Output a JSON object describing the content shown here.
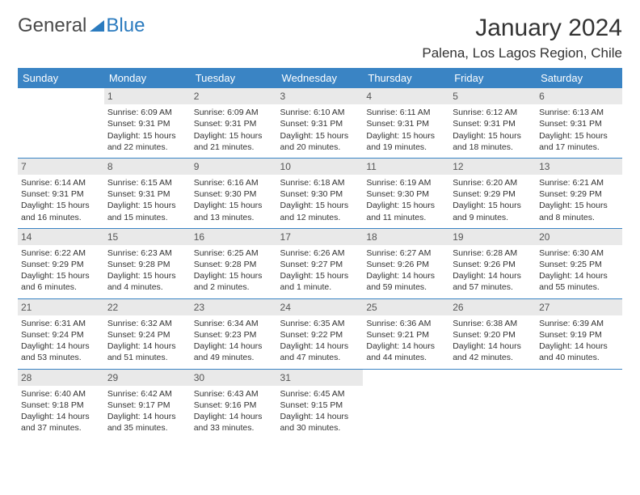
{
  "logo": {
    "part1": "General",
    "part2": "Blue"
  },
  "title": "January 2024",
  "location": "Palena, Los Lagos Region, Chile",
  "colors": {
    "header_bg": "#3a84c4",
    "header_text": "#ffffff",
    "daynum_bg": "#e9e9e9",
    "rule": "#3a84c4",
    "brand_blue": "#2b7bbf",
    "text": "#333333"
  },
  "weekdays": [
    "Sunday",
    "Monday",
    "Tuesday",
    "Wednesday",
    "Thursday",
    "Friday",
    "Saturday"
  ],
  "weeks": [
    [
      {
        "day": "",
        "sunrise": "",
        "sunset": "",
        "daylight": ""
      },
      {
        "day": "1",
        "sunrise": "Sunrise: 6:09 AM",
        "sunset": "Sunset: 9:31 PM",
        "daylight": "Daylight: 15 hours and 22 minutes."
      },
      {
        "day": "2",
        "sunrise": "Sunrise: 6:09 AM",
        "sunset": "Sunset: 9:31 PM",
        "daylight": "Daylight: 15 hours and 21 minutes."
      },
      {
        "day": "3",
        "sunrise": "Sunrise: 6:10 AM",
        "sunset": "Sunset: 9:31 PM",
        "daylight": "Daylight: 15 hours and 20 minutes."
      },
      {
        "day": "4",
        "sunrise": "Sunrise: 6:11 AM",
        "sunset": "Sunset: 9:31 PM",
        "daylight": "Daylight: 15 hours and 19 minutes."
      },
      {
        "day": "5",
        "sunrise": "Sunrise: 6:12 AM",
        "sunset": "Sunset: 9:31 PM",
        "daylight": "Daylight: 15 hours and 18 minutes."
      },
      {
        "day": "6",
        "sunrise": "Sunrise: 6:13 AM",
        "sunset": "Sunset: 9:31 PM",
        "daylight": "Daylight: 15 hours and 17 minutes."
      }
    ],
    [
      {
        "day": "7",
        "sunrise": "Sunrise: 6:14 AM",
        "sunset": "Sunset: 9:31 PM",
        "daylight": "Daylight: 15 hours and 16 minutes."
      },
      {
        "day": "8",
        "sunrise": "Sunrise: 6:15 AM",
        "sunset": "Sunset: 9:31 PM",
        "daylight": "Daylight: 15 hours and 15 minutes."
      },
      {
        "day": "9",
        "sunrise": "Sunrise: 6:16 AM",
        "sunset": "Sunset: 9:30 PM",
        "daylight": "Daylight: 15 hours and 13 minutes."
      },
      {
        "day": "10",
        "sunrise": "Sunrise: 6:18 AM",
        "sunset": "Sunset: 9:30 PM",
        "daylight": "Daylight: 15 hours and 12 minutes."
      },
      {
        "day": "11",
        "sunrise": "Sunrise: 6:19 AM",
        "sunset": "Sunset: 9:30 PM",
        "daylight": "Daylight: 15 hours and 11 minutes."
      },
      {
        "day": "12",
        "sunrise": "Sunrise: 6:20 AM",
        "sunset": "Sunset: 9:29 PM",
        "daylight": "Daylight: 15 hours and 9 minutes."
      },
      {
        "day": "13",
        "sunrise": "Sunrise: 6:21 AM",
        "sunset": "Sunset: 9:29 PM",
        "daylight": "Daylight: 15 hours and 8 minutes."
      }
    ],
    [
      {
        "day": "14",
        "sunrise": "Sunrise: 6:22 AM",
        "sunset": "Sunset: 9:29 PM",
        "daylight": "Daylight: 15 hours and 6 minutes."
      },
      {
        "day": "15",
        "sunrise": "Sunrise: 6:23 AM",
        "sunset": "Sunset: 9:28 PM",
        "daylight": "Daylight: 15 hours and 4 minutes."
      },
      {
        "day": "16",
        "sunrise": "Sunrise: 6:25 AM",
        "sunset": "Sunset: 9:28 PM",
        "daylight": "Daylight: 15 hours and 2 minutes."
      },
      {
        "day": "17",
        "sunrise": "Sunrise: 6:26 AM",
        "sunset": "Sunset: 9:27 PM",
        "daylight": "Daylight: 15 hours and 1 minute."
      },
      {
        "day": "18",
        "sunrise": "Sunrise: 6:27 AM",
        "sunset": "Sunset: 9:26 PM",
        "daylight": "Daylight: 14 hours and 59 minutes."
      },
      {
        "day": "19",
        "sunrise": "Sunrise: 6:28 AM",
        "sunset": "Sunset: 9:26 PM",
        "daylight": "Daylight: 14 hours and 57 minutes."
      },
      {
        "day": "20",
        "sunrise": "Sunrise: 6:30 AM",
        "sunset": "Sunset: 9:25 PM",
        "daylight": "Daylight: 14 hours and 55 minutes."
      }
    ],
    [
      {
        "day": "21",
        "sunrise": "Sunrise: 6:31 AM",
        "sunset": "Sunset: 9:24 PM",
        "daylight": "Daylight: 14 hours and 53 minutes."
      },
      {
        "day": "22",
        "sunrise": "Sunrise: 6:32 AM",
        "sunset": "Sunset: 9:24 PM",
        "daylight": "Daylight: 14 hours and 51 minutes."
      },
      {
        "day": "23",
        "sunrise": "Sunrise: 6:34 AM",
        "sunset": "Sunset: 9:23 PM",
        "daylight": "Daylight: 14 hours and 49 minutes."
      },
      {
        "day": "24",
        "sunrise": "Sunrise: 6:35 AM",
        "sunset": "Sunset: 9:22 PM",
        "daylight": "Daylight: 14 hours and 47 minutes."
      },
      {
        "day": "25",
        "sunrise": "Sunrise: 6:36 AM",
        "sunset": "Sunset: 9:21 PM",
        "daylight": "Daylight: 14 hours and 44 minutes."
      },
      {
        "day": "26",
        "sunrise": "Sunrise: 6:38 AM",
        "sunset": "Sunset: 9:20 PM",
        "daylight": "Daylight: 14 hours and 42 minutes."
      },
      {
        "day": "27",
        "sunrise": "Sunrise: 6:39 AM",
        "sunset": "Sunset: 9:19 PM",
        "daylight": "Daylight: 14 hours and 40 minutes."
      }
    ],
    [
      {
        "day": "28",
        "sunrise": "Sunrise: 6:40 AM",
        "sunset": "Sunset: 9:18 PM",
        "daylight": "Daylight: 14 hours and 37 minutes."
      },
      {
        "day": "29",
        "sunrise": "Sunrise: 6:42 AM",
        "sunset": "Sunset: 9:17 PM",
        "daylight": "Daylight: 14 hours and 35 minutes."
      },
      {
        "day": "30",
        "sunrise": "Sunrise: 6:43 AM",
        "sunset": "Sunset: 9:16 PM",
        "daylight": "Daylight: 14 hours and 33 minutes."
      },
      {
        "day": "31",
        "sunrise": "Sunrise: 6:45 AM",
        "sunset": "Sunset: 9:15 PM",
        "daylight": "Daylight: 14 hours and 30 minutes."
      },
      {
        "day": "",
        "sunrise": "",
        "sunset": "",
        "daylight": ""
      },
      {
        "day": "",
        "sunrise": "",
        "sunset": "",
        "daylight": ""
      },
      {
        "day": "",
        "sunrise": "",
        "sunset": "",
        "daylight": ""
      }
    ]
  ]
}
